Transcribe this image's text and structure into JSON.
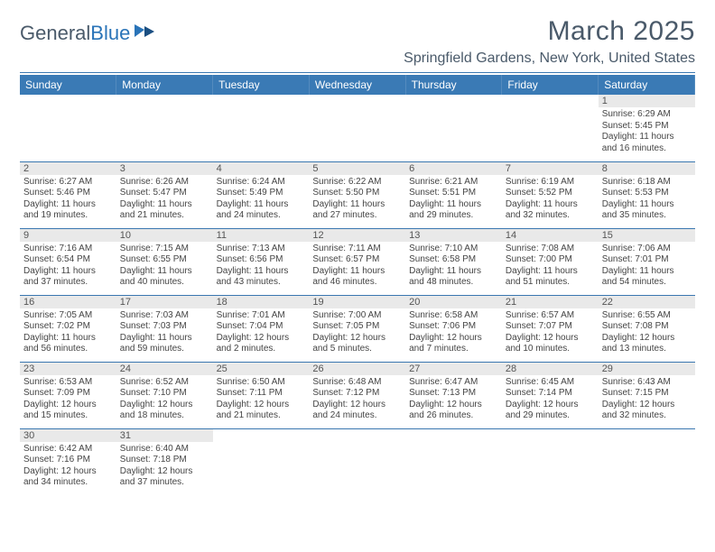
{
  "logo": {
    "word1": "General",
    "word2": "Blue"
  },
  "header": {
    "title": "March 2025",
    "location": "Springfield Gardens, New York, United States"
  },
  "colors": {
    "header_bg": "#3a7ab5",
    "header_text": "#ffffff",
    "divider": "#3a77b0",
    "daynum_bg": "#e9e9e9",
    "text": "#4a5a6a"
  },
  "daysOfWeek": [
    "Sunday",
    "Monday",
    "Tuesday",
    "Wednesday",
    "Thursday",
    "Friday",
    "Saturday"
  ],
  "weeks": [
    [
      null,
      null,
      null,
      null,
      null,
      null,
      {
        "n": "1",
        "sr": "6:29 AM",
        "ss": "5:45 PM",
        "dl": "11 hours and 16 minutes."
      }
    ],
    [
      {
        "n": "2",
        "sr": "6:27 AM",
        "ss": "5:46 PM",
        "dl": "11 hours and 19 minutes."
      },
      {
        "n": "3",
        "sr": "6:26 AM",
        "ss": "5:47 PM",
        "dl": "11 hours and 21 minutes."
      },
      {
        "n": "4",
        "sr": "6:24 AM",
        "ss": "5:49 PM",
        "dl": "11 hours and 24 minutes."
      },
      {
        "n": "5",
        "sr": "6:22 AM",
        "ss": "5:50 PM",
        "dl": "11 hours and 27 minutes."
      },
      {
        "n": "6",
        "sr": "6:21 AM",
        "ss": "5:51 PM",
        "dl": "11 hours and 29 minutes."
      },
      {
        "n": "7",
        "sr": "6:19 AM",
        "ss": "5:52 PM",
        "dl": "11 hours and 32 minutes."
      },
      {
        "n": "8",
        "sr": "6:18 AM",
        "ss": "5:53 PM",
        "dl": "11 hours and 35 minutes."
      }
    ],
    [
      {
        "n": "9",
        "sr": "7:16 AM",
        "ss": "6:54 PM",
        "dl": "11 hours and 37 minutes."
      },
      {
        "n": "10",
        "sr": "7:15 AM",
        "ss": "6:55 PM",
        "dl": "11 hours and 40 minutes."
      },
      {
        "n": "11",
        "sr": "7:13 AM",
        "ss": "6:56 PM",
        "dl": "11 hours and 43 minutes."
      },
      {
        "n": "12",
        "sr": "7:11 AM",
        "ss": "6:57 PM",
        "dl": "11 hours and 46 minutes."
      },
      {
        "n": "13",
        "sr": "7:10 AM",
        "ss": "6:58 PM",
        "dl": "11 hours and 48 minutes."
      },
      {
        "n": "14",
        "sr": "7:08 AM",
        "ss": "7:00 PM",
        "dl": "11 hours and 51 minutes."
      },
      {
        "n": "15",
        "sr": "7:06 AM",
        "ss": "7:01 PM",
        "dl": "11 hours and 54 minutes."
      }
    ],
    [
      {
        "n": "16",
        "sr": "7:05 AM",
        "ss": "7:02 PM",
        "dl": "11 hours and 56 minutes."
      },
      {
        "n": "17",
        "sr": "7:03 AM",
        "ss": "7:03 PM",
        "dl": "11 hours and 59 minutes."
      },
      {
        "n": "18",
        "sr": "7:01 AM",
        "ss": "7:04 PM",
        "dl": "12 hours and 2 minutes."
      },
      {
        "n": "19",
        "sr": "7:00 AM",
        "ss": "7:05 PM",
        "dl": "12 hours and 5 minutes."
      },
      {
        "n": "20",
        "sr": "6:58 AM",
        "ss": "7:06 PM",
        "dl": "12 hours and 7 minutes."
      },
      {
        "n": "21",
        "sr": "6:57 AM",
        "ss": "7:07 PM",
        "dl": "12 hours and 10 minutes."
      },
      {
        "n": "22",
        "sr": "6:55 AM",
        "ss": "7:08 PM",
        "dl": "12 hours and 13 minutes."
      }
    ],
    [
      {
        "n": "23",
        "sr": "6:53 AM",
        "ss": "7:09 PM",
        "dl": "12 hours and 15 minutes."
      },
      {
        "n": "24",
        "sr": "6:52 AM",
        "ss": "7:10 PM",
        "dl": "12 hours and 18 minutes."
      },
      {
        "n": "25",
        "sr": "6:50 AM",
        "ss": "7:11 PM",
        "dl": "12 hours and 21 minutes."
      },
      {
        "n": "26",
        "sr": "6:48 AM",
        "ss": "7:12 PM",
        "dl": "12 hours and 24 minutes."
      },
      {
        "n": "27",
        "sr": "6:47 AM",
        "ss": "7:13 PM",
        "dl": "12 hours and 26 minutes."
      },
      {
        "n": "28",
        "sr": "6:45 AM",
        "ss": "7:14 PM",
        "dl": "12 hours and 29 minutes."
      },
      {
        "n": "29",
        "sr": "6:43 AM",
        "ss": "7:15 PM",
        "dl": "12 hours and 32 minutes."
      }
    ],
    [
      {
        "n": "30",
        "sr": "6:42 AM",
        "ss": "7:16 PM",
        "dl": "12 hours and 34 minutes."
      },
      {
        "n": "31",
        "sr": "6:40 AM",
        "ss": "7:18 PM",
        "dl": "12 hours and 37 minutes."
      },
      null,
      null,
      null,
      null,
      null
    ]
  ],
  "labels": {
    "sunrise": "Sunrise:",
    "sunset": "Sunset:",
    "daylight": "Daylight:"
  }
}
